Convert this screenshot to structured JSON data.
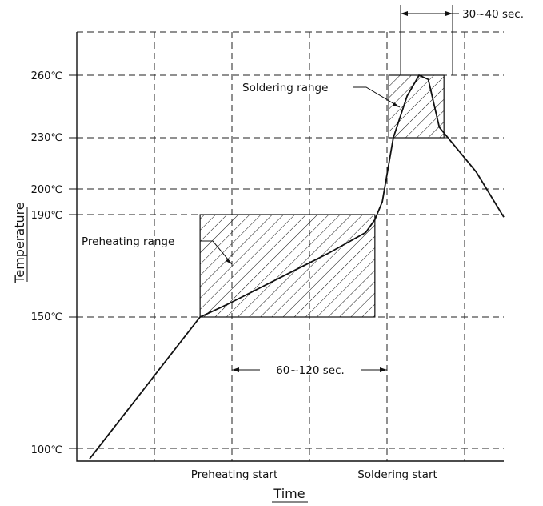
{
  "chart_data": {
    "type": "line",
    "xlabel": "Time",
    "ylabel": "Temperature",
    "y_ticks": [
      "100℃",
      "150℃",
      "190℃",
      "200℃",
      "230℃",
      "260℃"
    ],
    "y_tick_values": [
      100,
      150,
      190,
      200,
      230,
      260
    ],
    "x_ticks": [
      "Preheating start",
      "Soldering start"
    ],
    "series": [
      {
        "values": [
          [
            0,
            96
          ],
          [
            120,
            150
          ],
          [
            150,
            155
          ],
          [
            260,
            175
          ],
          [
            300,
            183
          ],
          [
            310,
            188
          ],
          [
            318,
            195
          ],
          [
            330,
            230
          ],
          [
            345,
            250
          ],
          [
            358,
            260
          ],
          [
            368,
            258
          ],
          [
            380,
            235
          ],
          [
            420,
            210
          ],
          [
            450,
            189
          ]
        ]
      }
    ],
    "regions": [
      {
        "label": "Preheating range",
        "x": [
          120,
          310
        ],
        "y": [
          150,
          190
        ]
      },
      {
        "label": "Soldering range",
        "x": [
          325,
          385
        ],
        "y": [
          230,
          260
        ]
      }
    ],
    "annotations": [
      {
        "label": "60~120 sec."
      },
      {
        "label": "30~40 sec."
      }
    ]
  }
}
